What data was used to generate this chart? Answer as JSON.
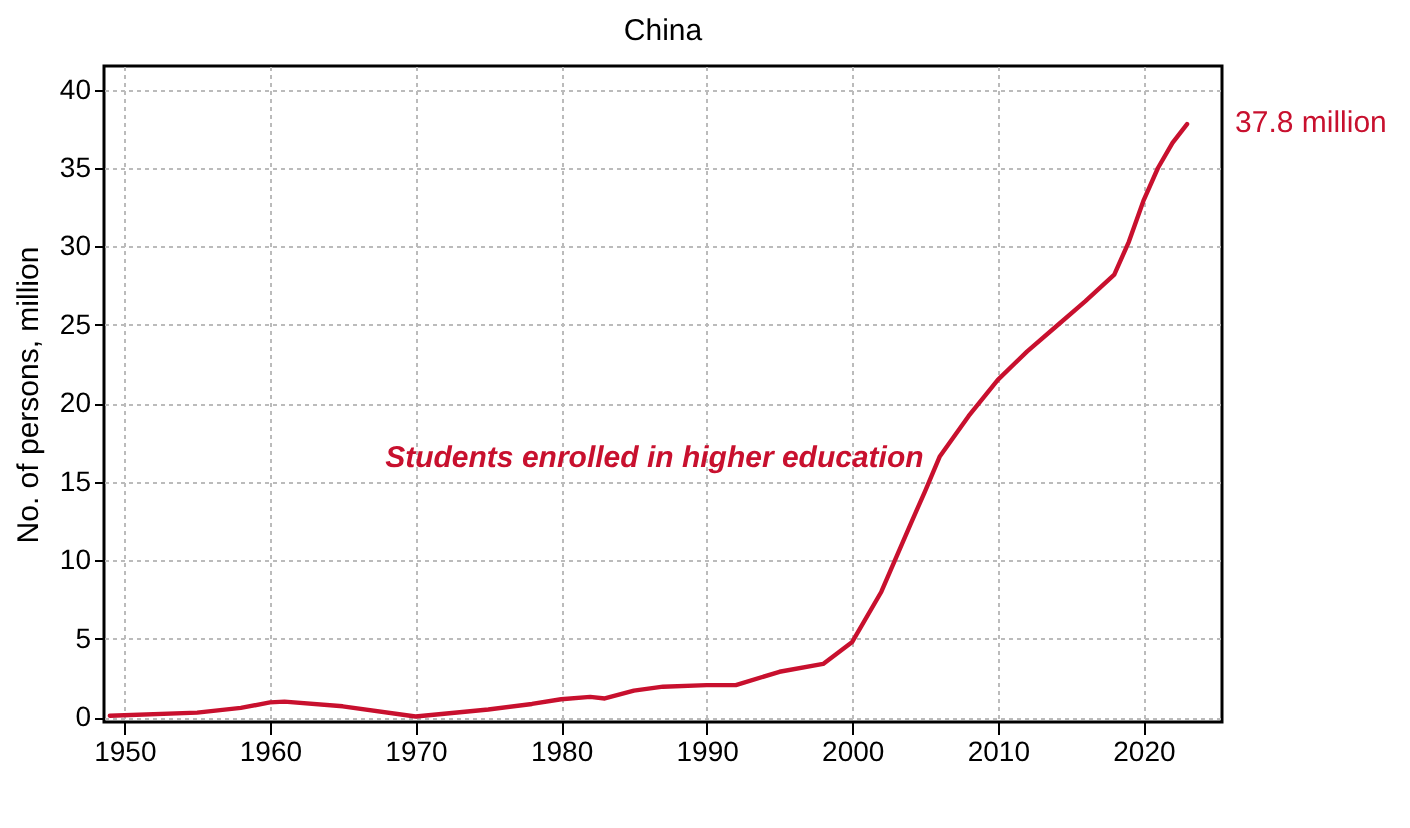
{
  "chart_data": {
    "type": "line",
    "title": "China",
    "ylabel": "No. of persons, million",
    "x": [
      1949,
      1955,
      1958,
      1960,
      1961,
      1965,
      1970,
      1975,
      1978,
      1980,
      1982,
      1983,
      1985,
      1987,
      1990,
      1992,
      1995,
      1998,
      1999,
      2000,
      2002,
      2004,
      2005,
      2006,
      2008,
      2010,
      2012,
      2014,
      2016,
      2018,
      2019,
      2020,
      2021,
      2022,
      2023
    ],
    "series": [
      {
        "name": "Students enrolled in higher education",
        "color": "#c8102e",
        "values": [
          0.1,
          0.3,
          0.6,
          0.95,
          1.0,
          0.7,
          0.05,
          0.5,
          0.85,
          1.15,
          1.3,
          1.2,
          1.7,
          1.95,
          2.05,
          2.05,
          2.9,
          3.4,
          4.1,
          4.8,
          8.0,
          12.3,
          14.4,
          16.6,
          19.2,
          21.5,
          23.3,
          24.9,
          26.5,
          28.2,
          30.3,
          32.9,
          35.0,
          36.6,
          37.8
        ]
      }
    ],
    "annotations": [
      {
        "text": "37.8 million",
        "x": 2023,
        "y": 37.8
      }
    ],
    "xlim": [
      1948.6,
      2025.4
    ],
    "xticks": [
      1950,
      1960,
      1970,
      1980,
      1990,
      2000,
      2010,
      2020
    ],
    "ylim": [
      -0.3,
      41.5
    ],
    "yticks": [
      0,
      5,
      10,
      15,
      20,
      25,
      30,
      35,
      40
    ],
    "grid": true,
    "legend": false,
    "marker": "none",
    "line_style": "solid"
  }
}
